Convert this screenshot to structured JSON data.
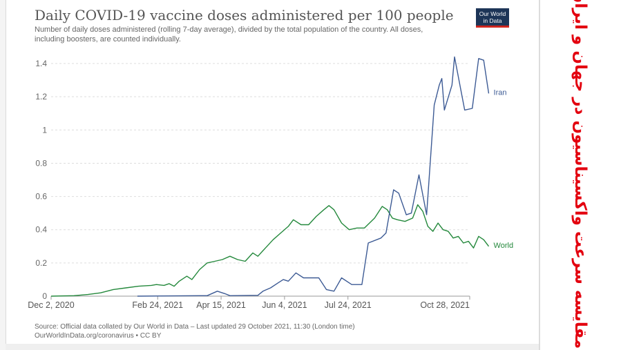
{
  "title": "Daily COVID-19 vaccine doses administered per 100 people",
  "subtitle": "Number of daily doses administered (rolling 7-day average), divided by the total population of the country. All doses, including boosters, are counted individually.",
  "logo": {
    "line1": "Our World",
    "line2": "in Data"
  },
  "source": {
    "line1": "Source: Official data collated by Our World in Data – Last updated 29 October 2021, 11:30 (London time)",
    "line2": "OurWorldInData.org/coronavirus • CC BY"
  },
  "side_note": "مقایسه سرعت واکسیناسیون در جهان و ایران",
  "colors": {
    "iran": "#3c5a94",
    "world": "#23883b",
    "grid": "#dddddd",
    "side_note": "#e3000f"
  },
  "chart_data": {
    "type": "line",
    "title": "Daily COVID-19 vaccine doses administered per 100 people",
    "x_axis": "date",
    "xlim": [
      "2020-12-02",
      "2021-10-28"
    ],
    "ylim": [
      0,
      1.45
    ],
    "y_ticks": [
      {
        "value": 0,
        "label": "0"
      },
      {
        "value": 0.2,
        "label": "0.2"
      },
      {
        "value": 0.4,
        "label": "0.4"
      },
      {
        "value": 0.6,
        "label": "0.6"
      },
      {
        "value": 0.8,
        "label": "0.8"
      },
      {
        "value": 1.0,
        "label": "1"
      },
      {
        "value": 1.2,
        "label": "1.2"
      },
      {
        "value": 1.4,
        "label": "1.4"
      }
    ],
    "x_ticks": [
      {
        "value": "2020-12-02",
        "label": "Dec 2, 2020"
      },
      {
        "value": "2021-02-24",
        "label": "Feb 24, 2021"
      },
      {
        "value": "2021-04-15",
        "label": "Apr 15, 2021"
      },
      {
        "value": "2021-06-04",
        "label": "Jun 4, 2021"
      },
      {
        "value": "2021-07-24",
        "label": "Jul 24, 2021"
      },
      {
        "value": "2021-10-28",
        "label": "Oct 28, 2021"
      }
    ],
    "grid": true,
    "series": [
      {
        "name": "World",
        "points": [
          [
            "2020-12-02",
            0.0
          ],
          [
            "2020-12-20",
            0.003
          ],
          [
            "2020-12-31",
            0.01
          ],
          [
            "2021-01-10",
            0.02
          ],
          [
            "2021-01-20",
            0.04
          ],
          [
            "2021-01-30",
            0.05
          ],
          [
            "2021-02-09",
            0.06
          ],
          [
            "2021-02-19",
            0.065
          ],
          [
            "2021-02-23",
            0.07
          ],
          [
            "2021-03-01",
            0.065
          ],
          [
            "2021-03-05",
            0.075
          ],
          [
            "2021-03-09",
            0.06
          ],
          [
            "2021-03-13",
            0.09
          ],
          [
            "2021-03-19",
            0.12
          ],
          [
            "2021-03-23",
            0.1
          ],
          [
            "2021-03-29",
            0.16
          ],
          [
            "2021-04-04",
            0.2
          ],
          [
            "2021-04-10",
            0.21
          ],
          [
            "2021-04-16",
            0.22
          ],
          [
            "2021-04-22",
            0.24
          ],
          [
            "2021-04-28",
            0.22
          ],
          [
            "2021-05-04",
            0.21
          ],
          [
            "2021-05-10",
            0.26
          ],
          [
            "2021-05-14",
            0.24
          ],
          [
            "2021-05-20",
            0.29
          ],
          [
            "2021-05-26",
            0.34
          ],
          [
            "2021-06-01",
            0.38
          ],
          [
            "2021-06-07",
            0.42
          ],
          [
            "2021-06-11",
            0.46
          ],
          [
            "2021-06-17",
            0.43
          ],
          [
            "2021-06-23",
            0.43
          ],
          [
            "2021-06-29",
            0.48
          ],
          [
            "2021-07-05",
            0.52
          ],
          [
            "2021-07-09",
            0.545
          ],
          [
            "2021-07-13",
            0.52
          ],
          [
            "2021-07-19",
            0.44
          ],
          [
            "2021-07-25",
            0.4
          ],
          [
            "2021-07-31",
            0.41
          ],
          [
            "2021-08-06",
            0.41
          ],
          [
            "2021-08-14",
            0.47
          ],
          [
            "2021-08-20",
            0.54
          ],
          [
            "2021-08-24",
            0.52
          ],
          [
            "2021-08-28",
            0.47
          ],
          [
            "2021-09-01",
            0.46
          ],
          [
            "2021-09-07",
            0.45
          ],
          [
            "2021-09-13",
            0.47
          ],
          [
            "2021-09-17",
            0.55
          ],
          [
            "2021-09-21",
            0.51
          ],
          [
            "2021-09-25",
            0.42
          ],
          [
            "2021-09-29",
            0.39
          ],
          [
            "2021-10-03",
            0.44
          ],
          [
            "2021-10-07",
            0.4
          ],
          [
            "2021-10-11",
            0.39
          ],
          [
            "2021-10-15",
            0.35
          ],
          [
            "2021-10-19",
            0.36
          ],
          [
            "2021-10-23",
            0.32
          ],
          [
            "2021-10-27",
            0.33
          ],
          [
            "2021-10-31",
            0.29
          ],
          [
            "2021-11-04",
            0.36
          ],
          [
            "2021-11-08",
            0.34
          ],
          [
            "2021-11-12",
            0.3
          ]
        ]
      },
      {
        "name": "Iran",
        "points": [
          [
            "2021-02-08",
            0.0
          ],
          [
            "2021-03-29",
            0.003
          ],
          [
            "2021-04-04",
            0.003
          ],
          [
            "2021-04-12",
            0.03
          ],
          [
            "2021-04-18",
            0.015
          ],
          [
            "2021-04-22",
            0.003
          ],
          [
            "2021-05-14",
            0.005
          ],
          [
            "2021-05-18",
            0.03
          ],
          [
            "2021-05-24",
            0.05
          ],
          [
            "2021-05-30",
            0.08
          ],
          [
            "2021-06-03",
            0.1
          ],
          [
            "2021-06-07",
            0.09
          ],
          [
            "2021-06-13",
            0.14
          ],
          [
            "2021-06-19",
            0.11
          ],
          [
            "2021-06-25",
            0.11
          ],
          [
            "2021-07-01",
            0.11
          ],
          [
            "2021-07-07",
            0.04
          ],
          [
            "2021-07-13",
            0.03
          ],
          [
            "2021-07-19",
            0.11
          ],
          [
            "2021-07-27",
            0.07
          ],
          [
            "2021-08-04",
            0.07
          ],
          [
            "2021-08-09",
            0.32
          ],
          [
            "2021-08-19",
            0.35
          ],
          [
            "2021-08-23",
            0.38
          ],
          [
            "2021-08-29",
            0.64
          ],
          [
            "2021-09-02",
            0.62
          ],
          [
            "2021-09-08",
            0.49
          ],
          [
            "2021-09-12",
            0.5
          ],
          [
            "2021-09-18",
            0.73
          ],
          [
            "2021-09-24",
            0.49
          ],
          [
            "2021-09-30",
            1.15
          ],
          [
            "2021-10-04",
            1.27
          ],
          [
            "2021-10-06",
            1.31
          ],
          [
            "2021-10-08",
            1.12
          ],
          [
            "2021-10-14",
            1.27
          ],
          [
            "2021-10-16",
            1.44
          ],
          [
            "2021-10-24",
            1.12
          ],
          [
            "2021-10-30",
            1.13
          ],
          [
            "2021-11-04",
            1.43
          ],
          [
            "2021-11-08",
            1.42
          ],
          [
            "2021-11-12",
            1.22
          ]
        ]
      }
    ]
  }
}
